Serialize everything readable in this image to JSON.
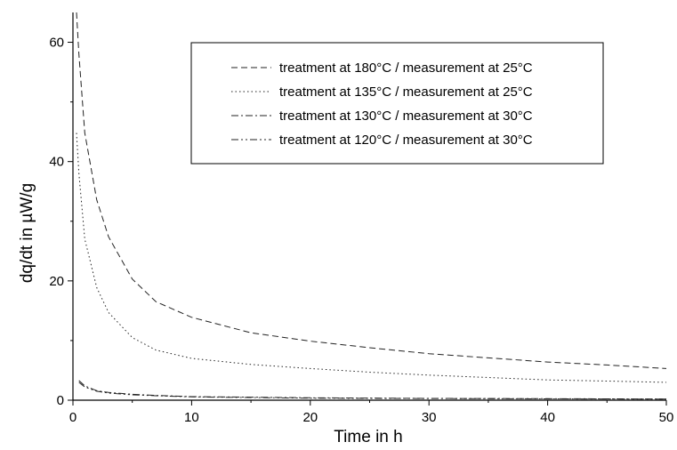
{
  "chart_data": {
    "type": "line",
    "xlabel": "Time in h",
    "ylabel": "dq/dt in µW/g",
    "xlim": [
      0,
      50
    ],
    "ylim": [
      0,
      65
    ],
    "xticks": [
      0,
      10,
      20,
      30,
      40,
      50
    ],
    "yticks": [
      0,
      20,
      40,
      60
    ],
    "grid": false,
    "legend_position": "top-right",
    "series": [
      {
        "name": "treatment at 180°C / measurement at 25°C",
        "style": "dashed",
        "points": [
          [
            0.3,
            65
          ],
          [
            0.5,
            58
          ],
          [
            1,
            44.8
          ],
          [
            2,
            33.6
          ],
          [
            3,
            27.4
          ],
          [
            5,
            20.3
          ],
          [
            7,
            16.5
          ],
          [
            10,
            13.9
          ],
          [
            15,
            11.3
          ],
          [
            20,
            9.9
          ],
          [
            25,
            8.8
          ],
          [
            30,
            7.8
          ],
          [
            35,
            7.1
          ],
          [
            40,
            6.4
          ],
          [
            45,
            5.9
          ],
          [
            50,
            5.3
          ]
        ]
      },
      {
        "name": "treatment at 135°C / measurement at 25°C",
        "style": "dotted",
        "points": [
          [
            0.3,
            44.8
          ],
          [
            0.5,
            38
          ],
          [
            1,
            27
          ],
          [
            2,
            18.9
          ],
          [
            3,
            14.7
          ],
          [
            5,
            10.5
          ],
          [
            7,
            8.4
          ],
          [
            10,
            7.0
          ],
          [
            15,
            6.0
          ],
          [
            20,
            5.3
          ],
          [
            25,
            4.7
          ],
          [
            30,
            4.2
          ],
          [
            35,
            3.8
          ],
          [
            40,
            3.4
          ],
          [
            45,
            3.2
          ],
          [
            50,
            3.0
          ]
        ]
      },
      {
        "name": "treatment at 130°C / measurement at 30°C",
        "style": "dash-dot",
        "points": [
          [
            0.5,
            3.3
          ],
          [
            1,
            2.4
          ],
          [
            2,
            1.6
          ],
          [
            3,
            1.3
          ],
          [
            5,
            1.0
          ],
          [
            7,
            0.8
          ],
          [
            10,
            0.6
          ],
          [
            15,
            0.5
          ],
          [
            20,
            0.4
          ],
          [
            30,
            0.3
          ],
          [
            40,
            0.25
          ],
          [
            50,
            0.2
          ]
        ]
      },
      {
        "name": "treatment at 120°C / measurement at 30°C",
        "style": "dash-dot-dot",
        "points": [
          [
            0.5,
            3.0
          ],
          [
            1,
            2.2
          ],
          [
            2,
            1.5
          ],
          [
            3,
            1.2
          ],
          [
            5,
            0.9
          ],
          [
            7,
            0.75
          ],
          [
            10,
            0.55
          ],
          [
            15,
            0.45
          ],
          [
            20,
            0.35
          ],
          [
            30,
            0.28
          ],
          [
            40,
            0.22
          ],
          [
            50,
            0.18
          ]
        ]
      }
    ]
  }
}
